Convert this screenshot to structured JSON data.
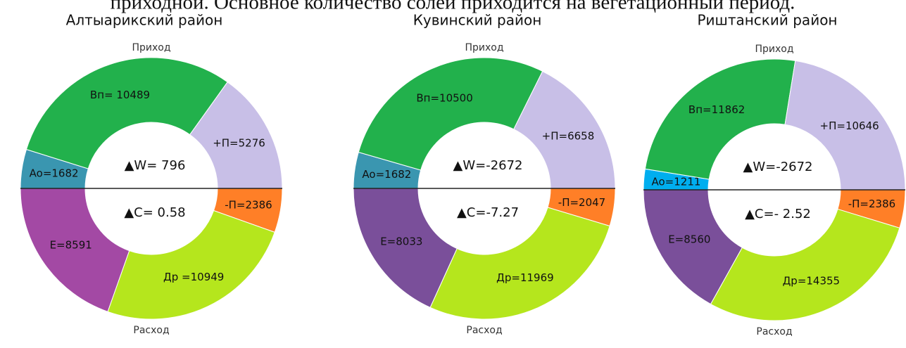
{
  "caption": "приходной. Основное количество солей приходится на вегетационный период.",
  "chart_data": [
    {
      "type": "donut",
      "title": "Алтыарикский район",
      "center_texts": [
        "▲W= 796",
        "▲C= 0.58"
      ],
      "series": [
        {
          "name": "Приход",
          "labels": [
            "Ao=1682",
            "Вп= 10489",
            "+П=5276"
          ],
          "values": [
            1682,
            10489,
            5276
          ],
          "colors": [
            "#3a96b0",
            "#22b14c",
            "#c8bfe7"
          ]
        },
        {
          "name": "Расход",
          "labels": [
            "-П=2386",
            "Др =10949",
            "E=8591"
          ],
          "values": [
            2386,
            10949,
            8591
          ],
          "colors": [
            "#ff7f27",
            "#b5e61d",
            "#a349a4"
          ]
        }
      ]
    },
    {
      "type": "donut",
      "title": "Кувинский район",
      "center_texts": [
        "▲W=-2672",
        "▲C=-7.27"
      ],
      "series": [
        {
          "name": "Приход",
          "labels": [
            "Ao=1682",
            "Вп=10500",
            "+П=6658"
          ],
          "values": [
            1682,
            10500,
            6658
          ],
          "colors": [
            "#3a96b0",
            "#22b14c",
            "#c8bfe7"
          ]
        },
        {
          "name": "Расход",
          "labels": [
            "-П=2047",
            "Др=11969",
            "E=8033"
          ],
          "values": [
            2047,
            11969,
            8033
          ],
          "colors": [
            "#ff7f27",
            "#b5e61d",
            "#7a4f9a"
          ]
        }
      ]
    },
    {
      "type": "donut",
      "title": "Риштанский район",
      "center_texts": [
        "▲W=-2672",
        "▲C=- 2.52"
      ],
      "series": [
        {
          "name": "Приход",
          "labels": [
            "Ao=1211",
            "Вп=11862",
            "+П=10646"
          ],
          "values": [
            1211,
            11862,
            10646
          ],
          "colors": [
            "#00aeef",
            "#22b14c",
            "#c8bfe7"
          ]
        },
        {
          "name": "Расход",
          "labels": [
            "-П=2386",
            "Др=14355",
            "E=8560"
          ],
          "values": [
            2386,
            14355,
            8560
          ],
          "colors": [
            "#ff7f27",
            "#b5e61d",
            "#7a4f9a"
          ]
        }
      ]
    }
  ]
}
